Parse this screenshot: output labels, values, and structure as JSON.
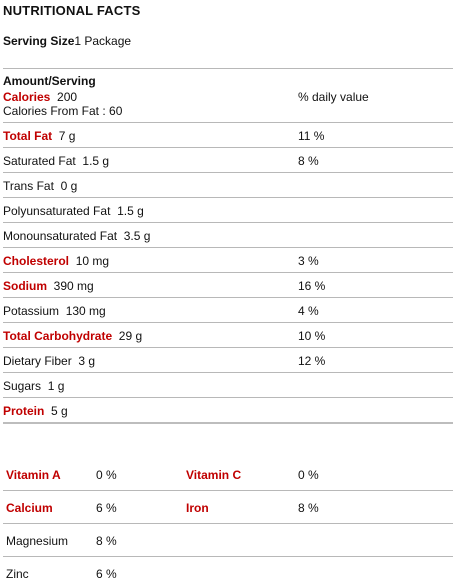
{
  "title": "NUTRITIONAL FACTS",
  "serving": {
    "label": "Serving Size",
    "value": "1 Package"
  },
  "amount_header": "Amount/Serving",
  "calories": {
    "label": "Calories",
    "value": "200",
    "from_fat": "Calories From Fat : 60",
    "daily_header": "% daily value"
  },
  "nutrients": [
    {
      "label": "Total Fat",
      "value": "7 g",
      "dv": "11 %",
      "major": true
    },
    {
      "label": "Saturated Fat",
      "value": "1.5 g",
      "dv": "8 %",
      "major": false
    },
    {
      "label": "Trans Fat",
      "value": "0 g",
      "dv": "",
      "major": false
    },
    {
      "label": "Polyunsaturated Fat",
      "value": "1.5 g",
      "dv": "",
      "major": false
    },
    {
      "label": "Monounsaturated Fat",
      "value": "3.5 g",
      "dv": "",
      "major": false
    },
    {
      "label": "Cholesterol",
      "value": "10 mg",
      "dv": "3 %",
      "major": true
    },
    {
      "label": "Sodium",
      "value": "390 mg",
      "dv": "16 %",
      "major": true
    },
    {
      "label": "Potassium",
      "value": "130 mg",
      "dv": "4 %",
      "major": false
    },
    {
      "label": "Total Carbohydrate",
      "value": "29 g",
      "dv": "10 %",
      "major": true
    },
    {
      "label": "Dietary Fiber",
      "value": "3 g",
      "dv": "12 %",
      "major": false
    },
    {
      "label": "Sugars",
      "value": "1 g",
      "dv": "",
      "major": false
    },
    {
      "label": "Protein",
      "value": "5 g",
      "dv": "",
      "major": true
    }
  ],
  "vitamins": [
    {
      "a_label": "Vitamin A",
      "a_value": "0 %",
      "a_major": true,
      "b_label": "Vitamin C",
      "b_value": "0 %",
      "b_major": true
    },
    {
      "a_label": "Calcium",
      "a_value": "6 %",
      "a_major": true,
      "b_label": "Iron",
      "b_value": "8 %",
      "b_major": true
    },
    {
      "a_label": "Magnesium",
      "a_value": "8 %",
      "a_major": false,
      "b_label": "",
      "b_value": "",
      "b_major": false
    },
    {
      "a_label": "Zinc",
      "a_value": "6 %",
      "a_major": false,
      "b_label": "",
      "b_value": "",
      "b_major": false
    }
  ]
}
